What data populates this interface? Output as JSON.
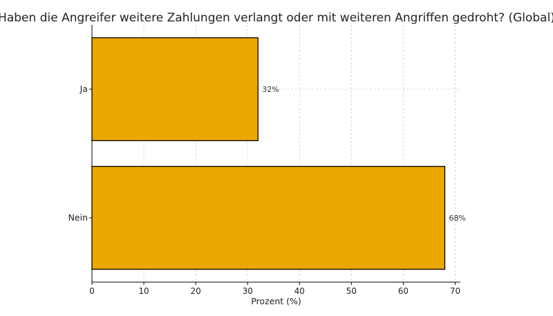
{
  "chart_data": {
    "type": "bar",
    "orientation": "horizontal",
    "title": "Haben die Angreifer weitere Zahlungen verlangt oder mit weiteren Angriffen gedroht? (Global)",
    "xlabel": "Prozent (%)",
    "ylabel": "",
    "categories": [
      "Ja",
      "Nein"
    ],
    "values": [
      32,
      68
    ],
    "data_labels": [
      "32%",
      "68%"
    ],
    "xlim": [
      0,
      71
    ],
    "xticks": [
      0,
      10,
      20,
      30,
      40,
      50,
      60,
      70
    ],
    "grid": true,
    "bar_color": "#eaa800",
    "edge_color": "#000000"
  }
}
